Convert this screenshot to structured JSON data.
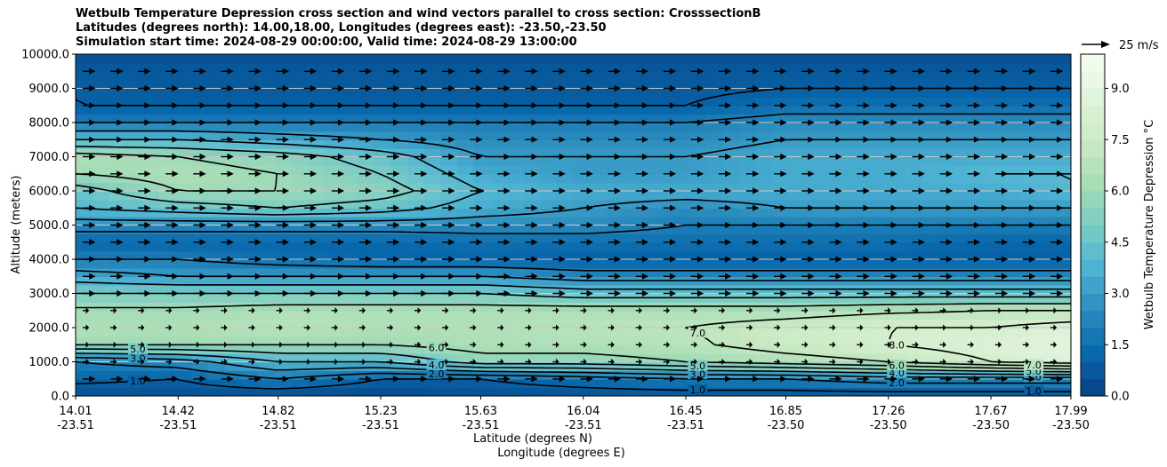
{
  "chart_data": {
    "type": "heatmap",
    "title_lines": [
      "Wetbulb Temperature Depression cross section and wind vectors parallel to cross section: CrosssectionB",
      "Latitudes (degrees north): 14.00,18.00, Longitudes (degrees east): -23.50,-23.50",
      "Simulation start time: 2024-08-29 00:00:00, Valid time: 2024-08-29 13:00:00"
    ],
    "ylabel": "Altitude (meters)",
    "xlabel_lines": [
      "Latitude (degrees N)",
      "Longitude (degrees E)"
    ],
    "y_ticks": [
      "0.0",
      "1000.0",
      "2000.0",
      "3000.0",
      "4000.0",
      "5000.0",
      "6000.0",
      "7000.0",
      "8000.0",
      "9000.0",
      "10000.0"
    ],
    "ylim": [
      0,
      10000
    ],
    "x_ticks": [
      {
        "lat": "14.01",
        "lon": "-23.51"
      },
      {
        "lat": "14.42",
        "lon": "-23.51"
      },
      {
        "lat": "14.82",
        "lon": "-23.51"
      },
      {
        "lat": "15.23",
        "lon": "-23.51"
      },
      {
        "lat": "15.63",
        "lon": "-23.51"
      },
      {
        "lat": "16.04",
        "lon": "-23.51"
      },
      {
        "lat": "16.45",
        "lon": "-23.51"
      },
      {
        "lat": "16.85",
        "lon": "-23.50"
      },
      {
        "lat": "17.26",
        "lon": "-23.50"
      },
      {
        "lat": "17.67",
        "lon": "-23.50"
      },
      {
        "lat": "17.99",
        "lon": "-23.50"
      }
    ],
    "colorbar_label": "Wetbulb Temperature Depression °C",
    "colorbar_ticks": [
      "0.0",
      "1.5",
      "3.0",
      "4.5",
      "6.0",
      "7.5",
      "9.0"
    ],
    "colorbar_range": [
      0,
      10
    ],
    "colormap": "GnBu_r",
    "colors": [
      "#084081",
      "#0868ac",
      "#2b8cbe",
      "#4eb3d3",
      "#7bccc4",
      "#a8ddb5",
      "#ccebc5",
      "#e0f3db",
      "#f7fcf0"
    ],
    "quiver_key": "25 m/s",
    "grid": "horizontal",
    "profile_altitudes": [
      0,
      500,
      1000,
      1500,
      2000,
      2500,
      3000,
      3500,
      4000,
      4500,
      5000,
      5500,
      6000,
      6500,
      7000,
      7500,
      8000,
      8500,
      9000,
      9500,
      10000
    ],
    "profiles": [
      {
        "lat": 14.01,
        "values": [
          0.5,
          1.2,
          2.0,
          6.0,
          6.5,
          6.2,
          5.0,
          3.5,
          2.0,
          1.2,
          2.5,
          4.0,
          4.5,
          6.0,
          6.5,
          4.0,
          2.0,
          1.0,
          1.0,
          0.8,
          0.5
        ]
      },
      {
        "lat": 14.42,
        "values": [
          0.5,
          1.0,
          2.5,
          6.0,
          6.5,
          6.2,
          5.0,
          3.0,
          2.0,
          1.2,
          2.5,
          4.5,
          6.0,
          6.5,
          6.0,
          4.0,
          2.0,
          1.0,
          0.8,
          0.8,
          0.5
        ]
      },
      {
        "lat": 14.82,
        "values": [
          0.3,
          2.0,
          4.0,
          6.0,
          6.8,
          6.5,
          5.0,
          3.0,
          1.5,
          1.2,
          2.5,
          5.0,
          6.0,
          6.0,
          5.5,
          3.5,
          2.0,
          1.0,
          0.8,
          0.8,
          0.5
        ]
      },
      {
        "lat": 15.23,
        "values": [
          0.3,
          1.0,
          4.0,
          6.0,
          6.5,
          6.5,
          5.0,
          3.0,
          1.2,
          1.2,
          2.5,
          4.5,
          5.5,
          5.0,
          4.5,
          3.0,
          2.0,
          1.0,
          0.8,
          0.8,
          0.5
        ]
      },
      {
        "lat": 15.63,
        "values": [
          0.5,
          1.0,
          5.5,
          6.5,
          6.5,
          6.5,
          5.0,
          3.0,
          1.2,
          1.5,
          2.5,
          3.5,
          4.0,
          3.5,
          3.0,
          2.5,
          2.0,
          1.0,
          0.8,
          0.8,
          0.5
        ]
      },
      {
        "lat": 16.04,
        "values": [
          0.5,
          1.5,
          5.5,
          6.5,
          6.8,
          6.5,
          4.5,
          2.5,
          1.0,
          1.5,
          2.5,
          3.0,
          3.5,
          3.0,
          3.0,
          2.5,
          2.0,
          1.0,
          0.8,
          0.8,
          0.5
        ]
      },
      {
        "lat": 16.45,
        "values": [
          0.5,
          2.0,
          6.0,
          6.8,
          7.0,
          6.5,
          4.5,
          2.5,
          1.0,
          1.5,
          2.0,
          2.5,
          3.5,
          3.0,
          3.0,
          2.5,
          2.0,
          1.0,
          0.8,
          0.8,
          0.5
        ]
      },
      {
        "lat": 16.85,
        "values": [
          0.5,
          2.0,
          6.5,
          7.5,
          7.5,
          6.5,
          4.5,
          2.5,
          1.0,
          1.5,
          2.0,
          3.0,
          3.5,
          3.5,
          3.5,
          3.0,
          2.5,
          1.5,
          1.0,
          0.8,
          0.5
        ]
      },
      {
        "lat": 17.26,
        "values": [
          0.5,
          2.5,
          7.0,
          8.0,
          8.0,
          6.8,
          4.5,
          2.5,
          1.0,
          1.5,
          2.0,
          3.0,
          3.5,
          3.5,
          3.5,
          3.0,
          2.5,
          1.5,
          1.0,
          0.8,
          0.5
        ]
      },
      {
        "lat": 17.67,
        "values": [
          0.5,
          2.5,
          8.0,
          8.5,
          8.0,
          7.0,
          4.5,
          2.5,
          1.0,
          1.2,
          2.0,
          3.0,
          3.5,
          4.0,
          3.5,
          3.0,
          2.5,
          1.5,
          1.0,
          0.8,
          0.5
        ]
      },
      {
        "lat": 17.99,
        "values": [
          0.5,
          2.5,
          8.5,
          9.0,
          8.5,
          7.0,
          4.5,
          2.5,
          1.0,
          1.2,
          2.0,
          3.0,
          4.0,
          4.0,
          3.5,
          3.0,
          2.5,
          1.5,
          1.0,
          0.8,
          0.5
        ]
      }
    ],
    "contour_labels": [
      "1.0",
      "2.0",
      "3.0",
      "4.0",
      "5.0",
      "6.0",
      "7.0",
      "8.0"
    ],
    "wind_speed_ms_approx": 15
  }
}
